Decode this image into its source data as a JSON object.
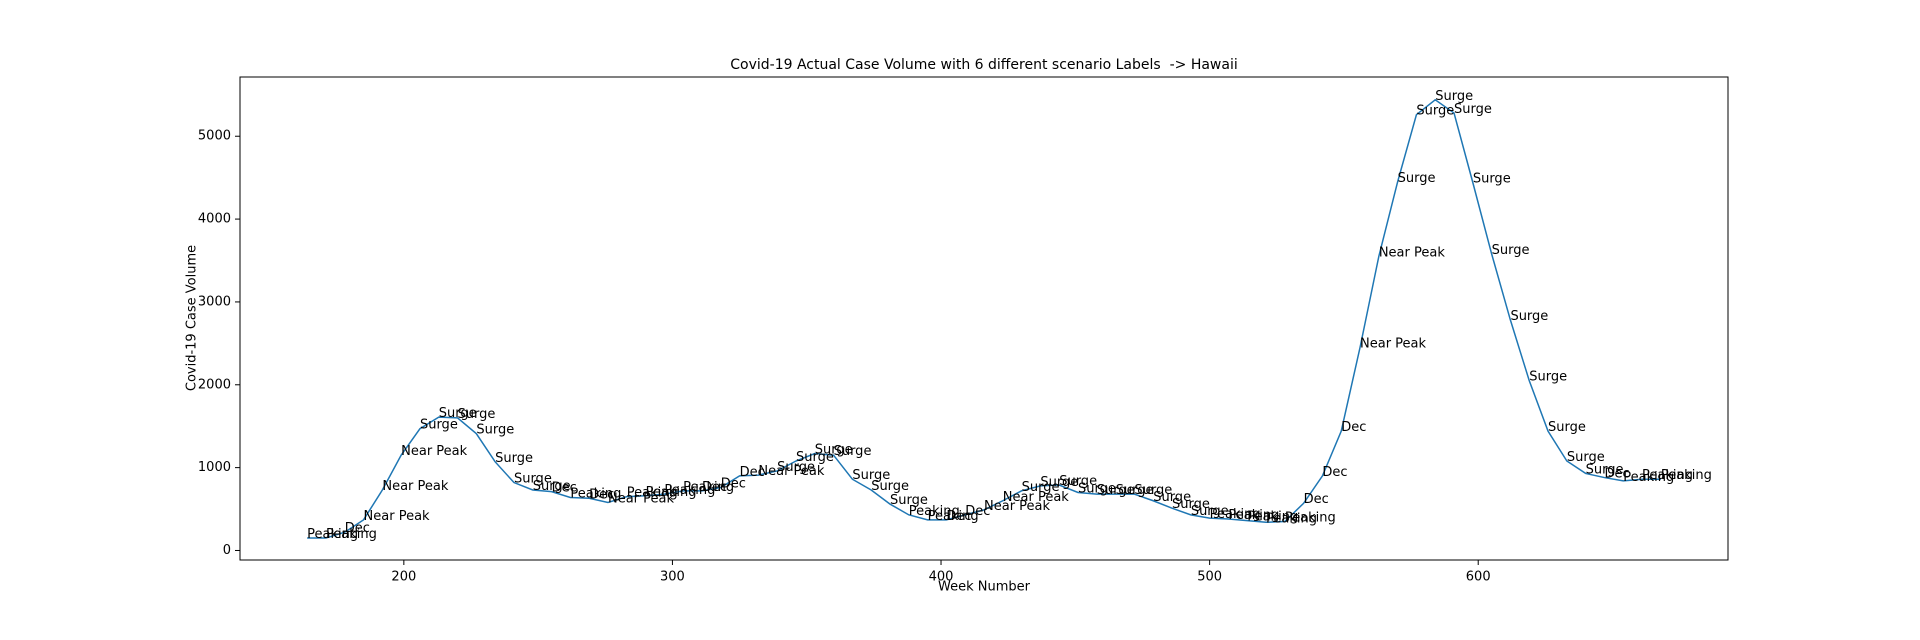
{
  "chart_data": {
    "type": "line",
    "title": "Covid-19 Actual Case Volume with 6 different scenario Labels  -> Hawaii",
    "xlabel": "Week Number",
    "ylabel": "Covid-19 Case Volume",
    "x": [
      164,
      171,
      178,
      185,
      192,
      199,
      206,
      213,
      220,
      227,
      234,
      241,
      248,
      255,
      262,
      269,
      276,
      283,
      290,
      297,
      304,
      311,
      318,
      325,
      332,
      339,
      346,
      353,
      360,
      367,
      374,
      381,
      388,
      395,
      402,
      409,
      416,
      423,
      430,
      437,
      444,
      451,
      458,
      465,
      472,
      479,
      486,
      493,
      500,
      507,
      514,
      521,
      528,
      535,
      542,
      549,
      556,
      563,
      570,
      577,
      584,
      591,
      598,
      605,
      612,
      619,
      626,
      633,
      640,
      647,
      654,
      661,
      668
    ],
    "series": [
      {
        "name": "Actual Case Volume",
        "color": "#1f77b4",
        "values": [
          150,
          150,
          220,
          370,
          730,
          1150,
          1470,
          1610,
          1600,
          1410,
          1070,
          820,
          730,
          710,
          640,
          630,
          580,
          650,
          660,
          680,
          720,
          720,
          760,
          900,
          910,
          960,
          1080,
          1170,
          1150,
          860,
          730,
          560,
          430,
          370,
          370,
          430,
          490,
          600,
          720,
          780,
          790,
          700,
          680,
          680,
          680,
          600,
          510,
          430,
          390,
          380,
          360,
          340,
          350,
          570,
          900,
          1440,
          2450,
          3550,
          4450,
          5260,
          5440,
          5280,
          4440,
          3580,
          2780,
          2050,
          1440,
          1080,
          930,
          880,
          840,
          860,
          860
        ]
      }
    ],
    "labels": [
      "Peaking",
      "Peaking",
      "Dec",
      "Near Peak",
      "Near Peak",
      "Near Peak",
      "Surge",
      "Surge",
      "Surge",
      "Surge",
      "Surge",
      "Surge",
      "Surge",
      "Dec",
      "Peaking",
      "Dec",
      "Near Peak",
      "Peaking",
      "Peaking",
      "Peaking",
      "Peaking",
      "Dec",
      "Dec",
      "Dec",
      "Near Peak",
      "Surge",
      "Surge",
      "Surge",
      "Surge",
      "Surge",
      "Surge",
      "Surge",
      "Peaking",
      "Peaking",
      "Dec",
      "Dec",
      "Near Peak",
      "Near Peak",
      "Surge",
      "Surge",
      "Surge",
      "Surge",
      "Surge",
      "Surge",
      "Surge",
      "Surge",
      "Surge",
      "Surge",
      "Peaking",
      "Peaking",
      "Peaking",
      "Peaking",
      "Peaking",
      "Dec",
      "Dec",
      "Dec",
      "Near Peak",
      "Near Peak",
      "Surge",
      "Surge",
      "Surge",
      "Surge",
      "Surge",
      "Surge",
      "Surge",
      "Surge",
      "Surge",
      "Surge",
      "Surge",
      "Dec",
      "Peaking",
      "Peaking",
      "Peaking"
    ],
    "xlim": [
      139,
      693
    ],
    "ylim": [
      -115,
      5715
    ],
    "xticks": [
      200,
      300,
      400,
      500,
      600
    ],
    "yticks": [
      0,
      1000,
      2000,
      3000,
      4000,
      5000
    ]
  }
}
